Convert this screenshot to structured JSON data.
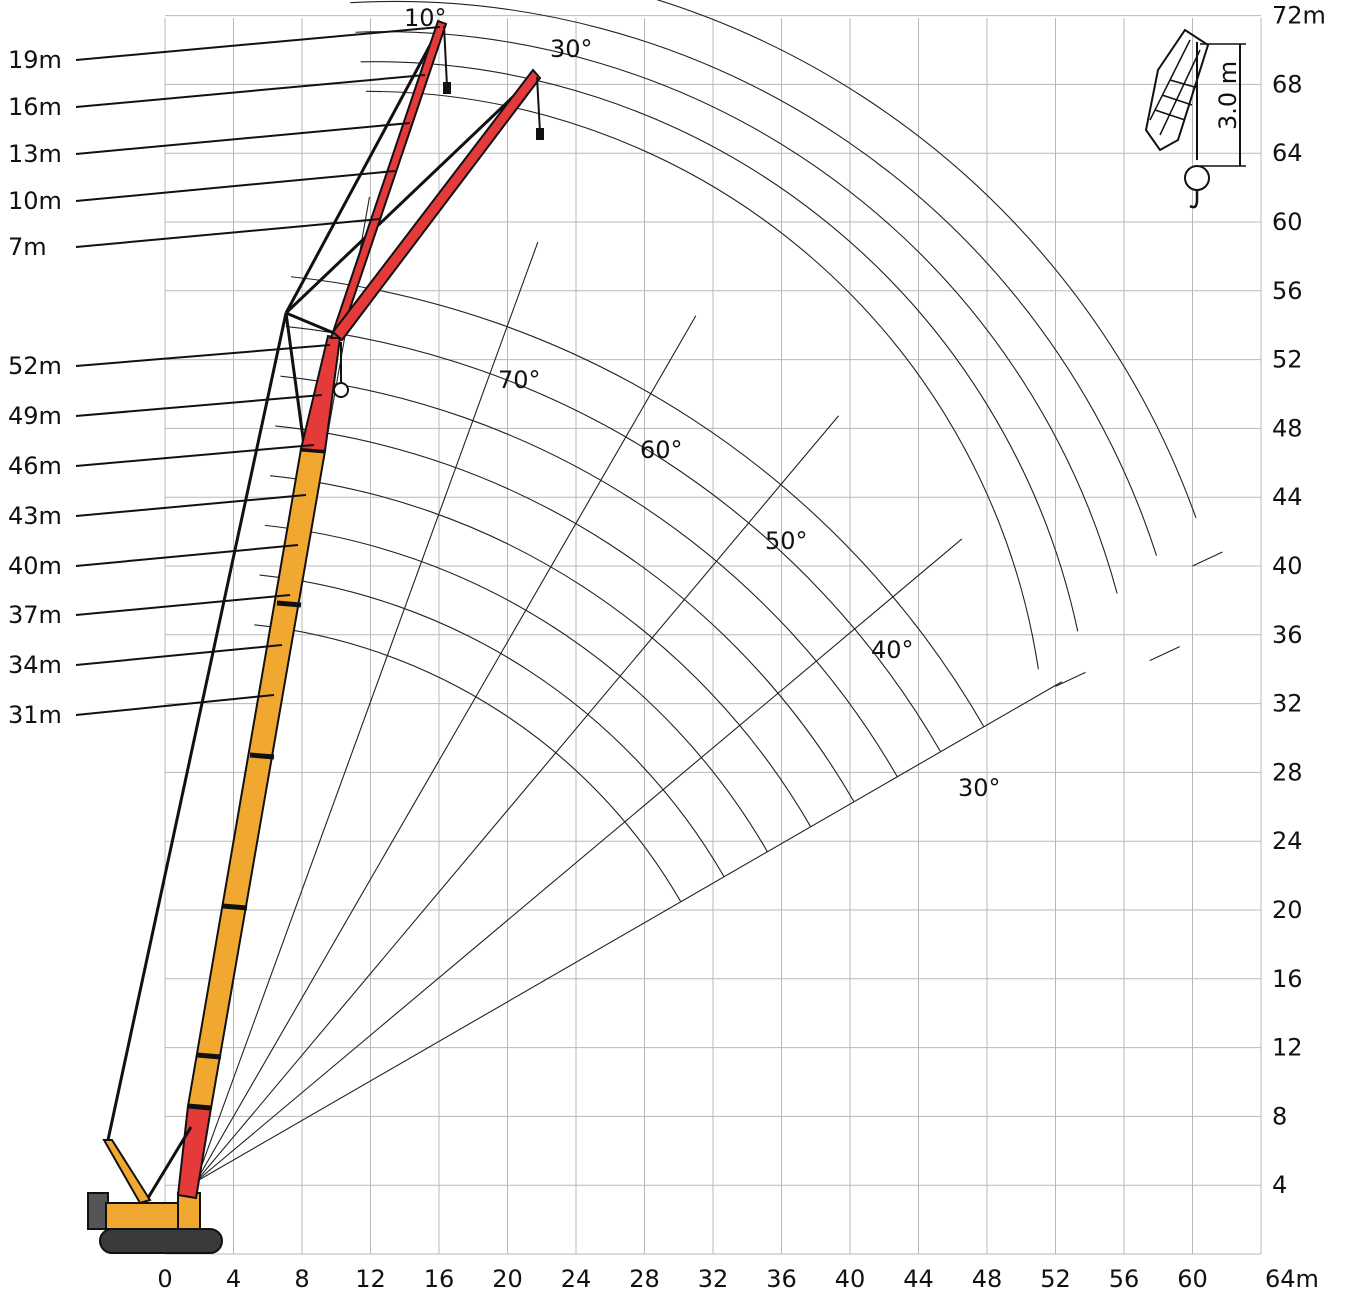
{
  "chart_data": {
    "type": "diagram",
    "x_ticks": [
      "0",
      "4",
      "8",
      "12",
      "16",
      "20",
      "24",
      "28",
      "32",
      "36",
      "40",
      "44",
      "48",
      "52",
      "56",
      "60",
      "64m"
    ],
    "y_ticks": [
      "4",
      "8",
      "12",
      "16",
      "20",
      "24",
      "28",
      "32",
      "36",
      "40",
      "44",
      "48",
      "52",
      "56",
      "60",
      "64",
      "68",
      "72m"
    ],
    "xlim": [
      -9.5,
      64
    ],
    "ylim": [
      0,
      72
    ],
    "main_boom_labels": [
      "52m",
      "49m",
      "46m",
      "43m",
      "40m",
      "37m",
      "34m",
      "31m"
    ],
    "jib_labels": [
      "19m",
      "16m",
      "13m",
      "10m",
      "7m"
    ],
    "boom_angle_labels": [
      "70°",
      "60°",
      "50°",
      "40°",
      "30°"
    ],
    "jib_offset_labels": [
      "10°",
      "30°"
    ],
    "hook_block_label": "3.0 m",
    "colors": {
      "main_boom": "#f0a830",
      "jib": "#e43a3a",
      "grid": "#b8b8b8",
      "lines": "#222222"
    }
  }
}
